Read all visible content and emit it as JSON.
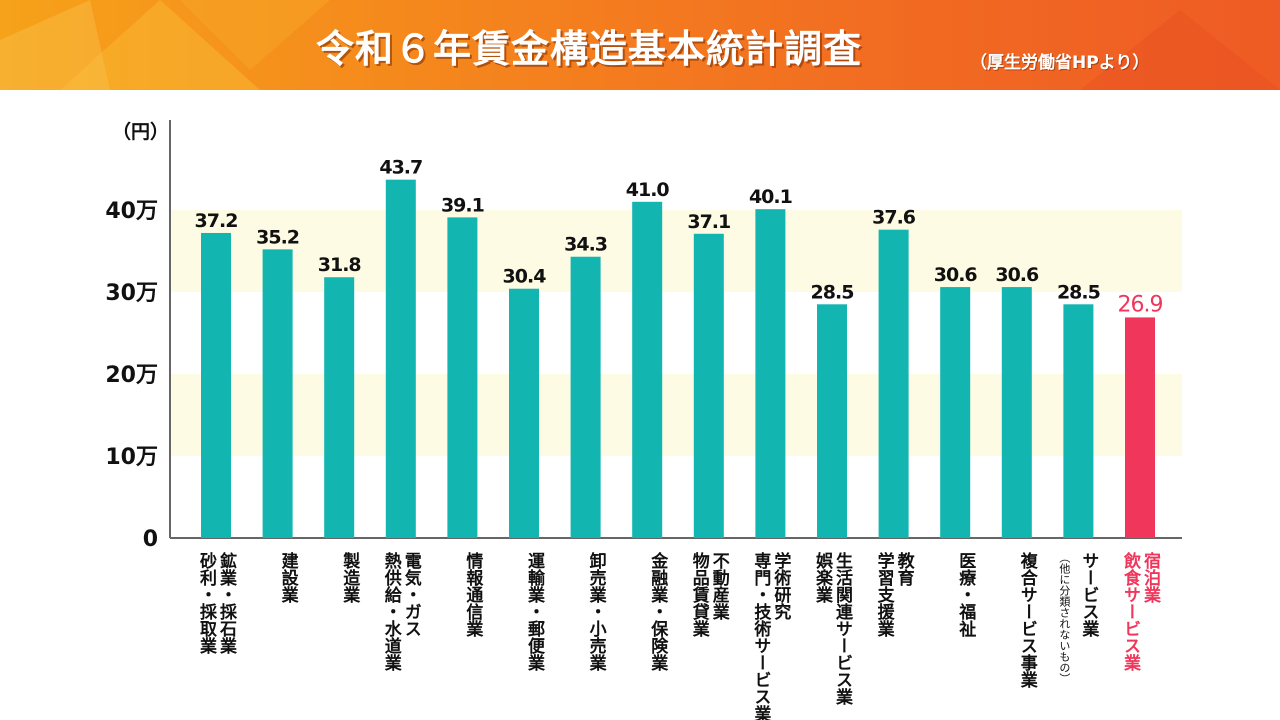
{
  "header": {
    "title": "令和６年賃金構造基本統計調査",
    "subtitle": "（厚生労働省HPより）"
  },
  "colors": {
    "bar": "#12b5b0",
    "highlight": "#f0365a",
    "band": "#fdfbe3",
    "text": "#111111"
  },
  "chart_data": {
    "type": "bar",
    "title": "令和６年賃金構造基本統計調査",
    "ylabel": "（円）",
    "ylim": [
      0,
      450000
    ],
    "yticks": [
      {
        "value": 0,
        "label": "0"
      },
      {
        "value": 100000,
        "label": "10万"
      },
      {
        "value": 200000,
        "label": "20万"
      },
      {
        "value": 300000,
        "label": "30万"
      },
      {
        "value": 400000,
        "label": "40万"
      }
    ],
    "bands": [
      [
        100000,
        200000
      ],
      [
        300000,
        400000
      ]
    ],
    "categories": [
      [
        "鉱業・採石業",
        "砂利・採取業"
      ],
      [
        "建設業"
      ],
      [
        "製造業"
      ],
      [
        "電気・ガス",
        "熱供給・水道業"
      ],
      [
        "情報通信業"
      ],
      [
        "運輸業・郵便業"
      ],
      [
        "卸売業・小売業"
      ],
      [
        "金融業・保険業"
      ],
      [
        "不動産業",
        "物品賃貸業"
      ],
      [
        "学術研究",
        "専門・技術サービス業"
      ],
      [
        "生活関連サービス業",
        "娯楽業"
      ],
      [
        "教育",
        "学習支援業"
      ],
      [
        "医療・福祉"
      ],
      [
        "複合サービス事業"
      ],
      [
        "サービス業",
        "（他に分類されないもの）"
      ],
      [
        "宿泊業",
        "飲食サービス業"
      ]
    ],
    "values": [
      372000,
      352000,
      318000,
      437000,
      391000,
      304000,
      343000,
      410000,
      371000,
      401000,
      285000,
      376000,
      306000,
      306000,
      285000,
      269000
    ],
    "value_labels": [
      "37.2",
      "35.2",
      "31.8",
      "43.7",
      "39.1",
      "30.4",
      "34.3",
      "41.0",
      "37.1",
      "40.1",
      "28.5",
      "37.6",
      "30.6",
      "30.6",
      "28.5",
      "26.9"
    ],
    "highlight_index": 15,
    "grid": false,
    "legend": "none"
  }
}
